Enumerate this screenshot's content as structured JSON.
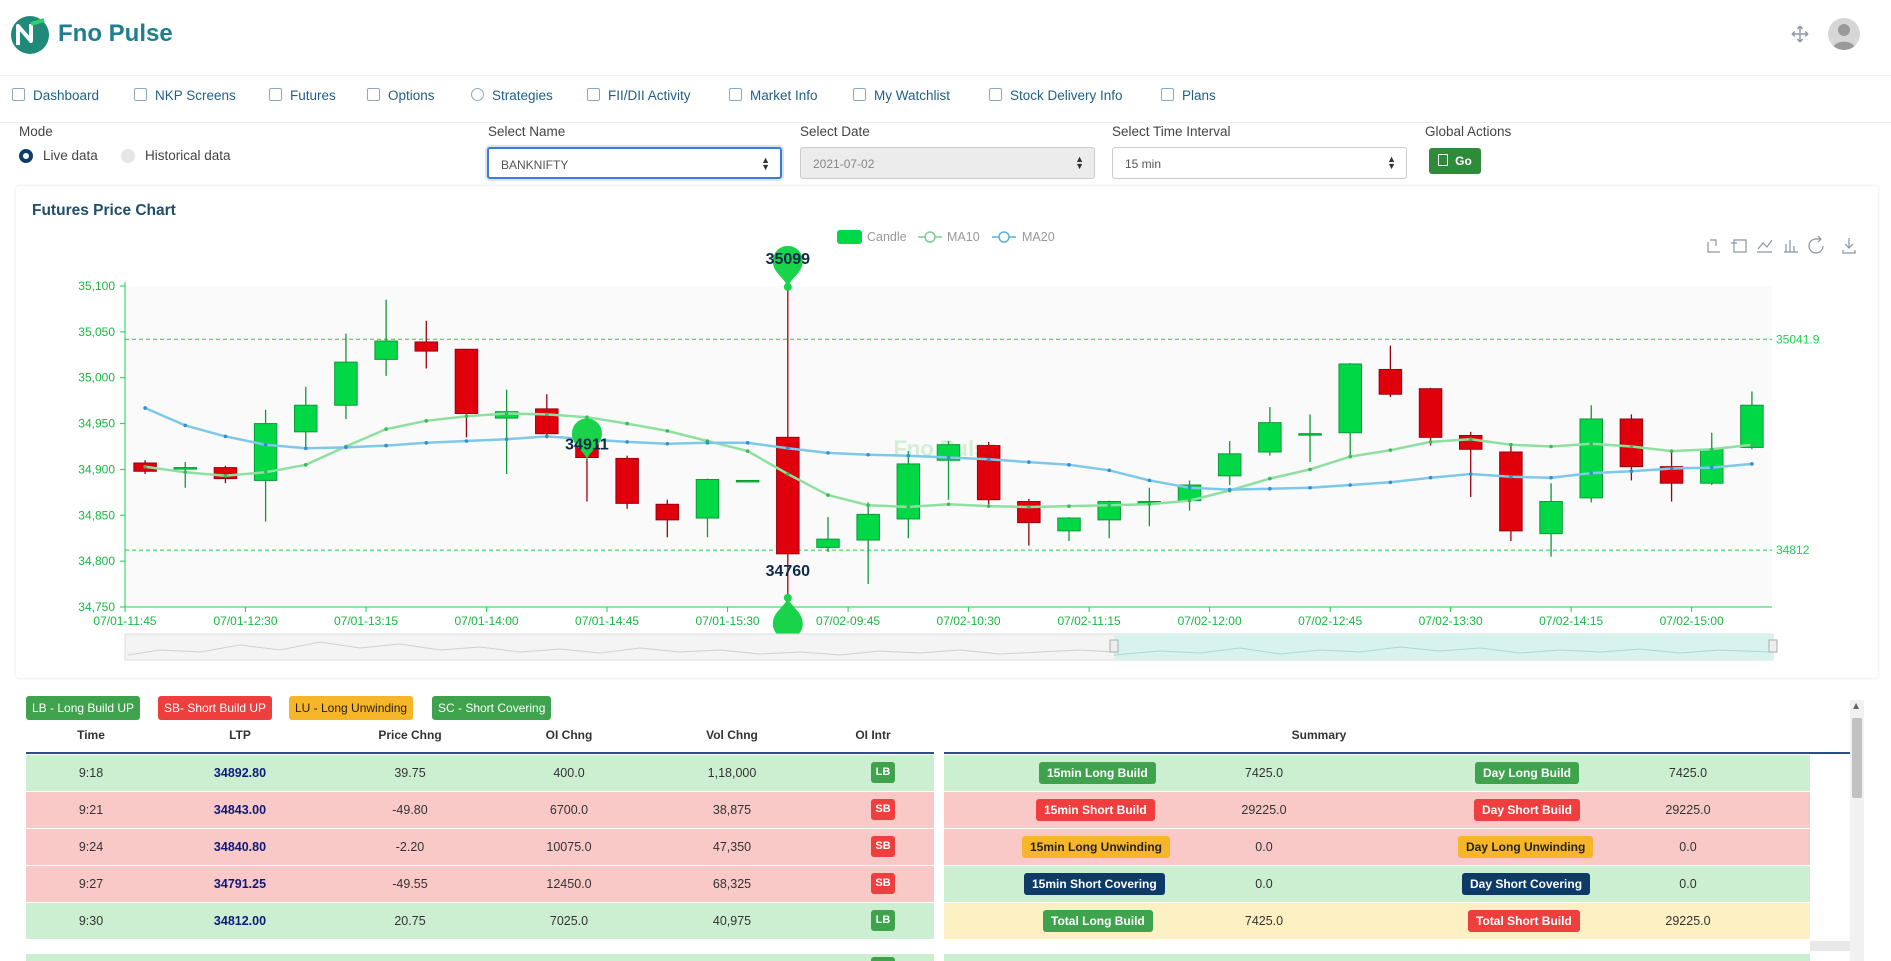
{
  "brand": {
    "name": "Fno Pulse"
  },
  "header": {
    "fullscreen_icon": "expand-arrows-icon",
    "avatar_icon": "user-avatar-icon"
  },
  "nav": [
    {
      "label": "Dashboard",
      "icon": "monitor-icon"
    },
    {
      "label": "NKP Screens",
      "icon": "monitor-icon"
    },
    {
      "label": "Futures",
      "icon": "document-icon"
    },
    {
      "label": "Options",
      "icon": "monitor-icon"
    },
    {
      "label": "Strategies",
      "icon": "gear-icon"
    },
    {
      "label": "FII/DII Activity",
      "icon": "bar-chart-icon"
    },
    {
      "label": "Market Info",
      "icon": "card-icon"
    },
    {
      "label": "My Watchlist",
      "icon": "window-icon"
    },
    {
      "label": "Stock Delivery Info",
      "icon": "monitor-icon"
    },
    {
      "label": "Plans",
      "icon": "store-icon"
    }
  ],
  "controls": {
    "mode_label": "Mode",
    "mode_options": [
      "Live data",
      "Historical data"
    ],
    "mode_selected": "Live data",
    "name_label": "Select Name",
    "name_value": "BANKNIFTY",
    "date_label": "Select Date",
    "date_value": "2021-07-02",
    "interval_label": "Select Time Interval",
    "interval_value": "15 min",
    "actions_label": "Global Actions",
    "go_label": "Go"
  },
  "chart_data": {
    "type": "candlestick",
    "title": "Futures Price Chart",
    "watermark": "Fno Pulse",
    "legend": [
      "Candle",
      "MA10",
      "MA20"
    ],
    "legend_position": "top-center",
    "colors": {
      "up": "#00d846",
      "down": "#e0000c",
      "ma10": "#8fe0a0",
      "ma20": "#7ec8e8",
      "markline": "#19d34b"
    },
    "ylim": [
      34750,
      35100
    ],
    "yticks": [
      "34,750",
      "34,800",
      "34,850",
      "34,900",
      "34,950",
      "35,000",
      "35,050",
      "35,100"
    ],
    "xticks": [
      "07/01-11:45",
      "07/01-12:30",
      "07/01-13:15",
      "07/01-14:00",
      "07/01-14:45",
      "07/01-15:30",
      "07/02-09:45",
      "07/02-10:30",
      "07/02-11:15",
      "07/02-12:00",
      "07/02-12:45",
      "07/02-13:30",
      "07/02-14:15",
      "07/02-15:00"
    ],
    "markpoints": {
      "max": "35099",
      "min": "34760",
      "other": "34911"
    },
    "marklines": {
      "high": "35041.9",
      "low": "34812"
    },
    "candles": [
      {
        "o": 34907,
        "c": 34898,
        "h": 34910,
        "l": 34895
      },
      {
        "o": 34902,
        "c": 34902,
        "h": 34908,
        "l": 34880
      },
      {
        "o": 34902,
        "c": 34890,
        "h": 34904,
        "l": 34885
      },
      {
        "o": 34888,
        "c": 34950,
        "h": 34965,
        "l": 34843
      },
      {
        "o": 34941,
        "c": 34970,
        "h": 34990,
        "l": 34923
      },
      {
        "o": 34970,
        "c": 35017,
        "h": 35048,
        "l": 34955
      },
      {
        "o": 35020,
        "c": 35040,
        "h": 35085,
        "l": 35002
      },
      {
        "o": 35039,
        "c": 35029,
        "h": 35062,
        "l": 35010
      },
      {
        "o": 35031,
        "c": 34961,
        "h": 35031,
        "l": 34935
      },
      {
        "o": 34956,
        "c": 34963,
        "h": 34987,
        "l": 34895
      },
      {
        "o": 34966,
        "c": 34939,
        "h": 34982,
        "l": 34934
      },
      {
        "o": 34935,
        "c": 34913,
        "h": 34945,
        "l": 34865
      },
      {
        "o": 34912,
        "c": 34863,
        "h": 34915,
        "l": 34857
      },
      {
        "o": 34862,
        "c": 34845,
        "h": 34867,
        "l": 34826
      },
      {
        "o": 34847,
        "c": 34889,
        "h": 34890,
        "l": 34826
      },
      {
        "o": 34888,
        "c": 34888,
        "h": 34888,
        "l": 34888
      },
      {
        "o": 34935,
        "c": 34808,
        "h": 35099,
        "l": 34760
      },
      {
        "o": 34815,
        "c": 34824,
        "h": 34848,
        "l": 34810
      },
      {
        "o": 34823,
        "c": 34851,
        "h": 34864,
        "l": 34775
      },
      {
        "o": 34846,
        "c": 34906,
        "h": 34920,
        "l": 34825
      },
      {
        "o": 34910,
        "c": 34927,
        "h": 34931,
        "l": 34867
      },
      {
        "o": 34926,
        "c": 34867,
        "h": 34930,
        "l": 34862
      },
      {
        "o": 34865,
        "c": 34842,
        "h": 34868,
        "l": 34817
      },
      {
        "o": 34833,
        "c": 34847,
        "h": 34848,
        "l": 34822
      },
      {
        "o": 34845,
        "c": 34865,
        "h": 34866,
        "l": 34825
      },
      {
        "o": 34865,
        "c": 34865,
        "h": 34880,
        "l": 34838
      },
      {
        "o": 34866,
        "c": 34883,
        "h": 34888,
        "l": 34855
      },
      {
        "o": 34893,
        "c": 34917,
        "h": 34931,
        "l": 34883
      },
      {
        "o": 34919,
        "c": 34951,
        "h": 34968,
        "l": 34915
      },
      {
        "o": 34939,
        "c": 34939,
        "h": 34960,
        "l": 34908
      },
      {
        "o": 34940,
        "c": 35015,
        "h": 35016,
        "l": 34912
      },
      {
        "o": 35009,
        "c": 34982,
        "h": 35035,
        "l": 34979
      },
      {
        "o": 34988,
        "c": 34935,
        "h": 34989,
        "l": 34926
      },
      {
        "o": 34937,
        "c": 34922,
        "h": 34941,
        "l": 34870
      },
      {
        "o": 34919,
        "c": 34833,
        "h": 34926,
        "l": 34822
      },
      {
        "o": 34830,
        "c": 34865,
        "h": 34885,
        "l": 34805
      },
      {
        "o": 34869,
        "c": 34955,
        "h": 34970,
        "l": 34864
      },
      {
        "o": 34955,
        "c": 34903,
        "h": 34960,
        "l": 34888
      },
      {
        "o": 34903,
        "c": 34885,
        "h": 34921,
        "l": 34865
      },
      {
        "o": 34885,
        "c": 34922,
        "h": 34940,
        "l": 34883
      },
      {
        "o": 34924,
        "c": 34970,
        "h": 34985,
        "l": 34922
      }
    ],
    "ma10": [
      34903,
      34897,
      34893,
      34897,
      34905,
      34925,
      34944,
      34953,
      34958,
      34961,
      34960,
      34957,
      34950,
      34942,
      34931,
      34920,
      34895,
      34872,
      34861,
      34859,
      34862,
      34860,
      34859,
      34860,
      34861,
      34862,
      34866,
      34877,
      34890,
      34900,
      34914,
      34921,
      34930,
      34933,
      34927,
      34925,
      34928,
      34925,
      34920,
      34922,
      34927
    ],
    "ma20": [
      34967,
      34948,
      34936,
      34927,
      34923,
      34924,
      34926,
      34929,
      34931,
      34933,
      34936,
      34933,
      34930,
      34928,
      34929,
      34929,
      34923,
      34918,
      34916,
      34915,
      34913,
      34911,
      34908,
      34905,
      34899,
      34888,
      34880,
      34878,
      34879,
      34880,
      34883,
      34886,
      34891,
      34895,
      34892,
      34891,
      34896,
      34898,
      34901,
      34902,
      34906
    ],
    "x_tick_every": 3,
    "toolbox_icons": [
      "zoom-in-icon",
      "zoom-reset-icon",
      "line-chart-icon",
      "bar-chart-icon",
      "restore-icon",
      "download-icon"
    ]
  },
  "legend_tags": [
    {
      "label": "LB - Long Build UP",
      "color": "#3fa34d"
    },
    {
      "label": "SB- Short Build UP",
      "color": "#ee3e3e"
    },
    {
      "label": "LU - Long Unwinding",
      "color": "#f7b528"
    },
    {
      "label": "SC - Short Covering",
      "color": "#3fa34d"
    }
  ],
  "table": {
    "headers": [
      "Time",
      "LTP",
      "Price Chng",
      "OI Chng",
      "Vol Chng",
      "OI Intr"
    ],
    "rows": [
      {
        "time": "9:18",
        "ltp": "34892.80",
        "price_chng": "39.75",
        "oi_chng": "400.0",
        "vol_chng": "1,18,000",
        "oi_intr": "LB",
        "bg": "#cdefd1",
        "badge": "#3fa34d"
      },
      {
        "time": "9:21",
        "ltp": "34843.00",
        "price_chng": "-49.80",
        "oi_chng": "6700.0",
        "vol_chng": "38,875",
        "oi_intr": "SB",
        "bg": "#f9c9c7",
        "badge": "#ee3e3e"
      },
      {
        "time": "9:24",
        "ltp": "34840.80",
        "price_chng": "-2.20",
        "oi_chng": "10075.0",
        "vol_chng": "47,350",
        "oi_intr": "SB",
        "bg": "#f9c9c7",
        "badge": "#ee3e3e"
      },
      {
        "time": "9:27",
        "ltp": "34791.25",
        "price_chng": "-49.55",
        "oi_chng": "12450.0",
        "vol_chng": "68,325",
        "oi_intr": "SB",
        "bg": "#f9c9c7",
        "badge": "#ee3e3e"
      },
      {
        "time": "9:30",
        "ltp": "34812.00",
        "price_chng": "20.75",
        "oi_chng": "7025.0",
        "vol_chng": "40,975",
        "oi_intr": "LB",
        "bg": "#cdefd1",
        "badge": "#3fa34d"
      }
    ]
  },
  "summary": {
    "header": "Summary",
    "rows": [
      {
        "label1": "15min Long Build",
        "val1": "7425.0",
        "label2": "Day Long Build",
        "val2": "7425.0",
        "bg": "#cdefd1",
        "c1": "#3fa34d",
        "c2": "#3fa34d",
        "tc": "#ffffff"
      },
      {
        "label1": "15min Short Build",
        "val1": "29225.0",
        "label2": "Day Short Build",
        "val2": "29225.0",
        "bg": "#f9c9c7",
        "c1": "#ee3e3e",
        "c2": "#ee3e3e",
        "tc": "#ffffff"
      },
      {
        "label1": "15min Long Unwinding",
        "val1": "0.0",
        "label2": "Day Long Unwinding",
        "val2": "0.0",
        "bg": "#f9c9c7",
        "c1": "#f7b528",
        "c2": "#f7b528",
        "tc": "#222222"
      },
      {
        "label1": "15min Short Covering",
        "val1": "0.0",
        "label2": "Day Short Covering",
        "val2": "0.0",
        "bg": "#cdefd1",
        "c1": "#0e3a66",
        "c2": "#0e3a66",
        "tc": "#ffffff"
      },
      {
        "label1": "Total Long Build",
        "val1": "7425.0",
        "label2": "Total Short Build",
        "val2": "29225.0",
        "bg": "#fdf0c2",
        "c1": "#3fa34d",
        "c2": "#ee3e3e",
        "tc": "#ffffff"
      }
    ]
  }
}
